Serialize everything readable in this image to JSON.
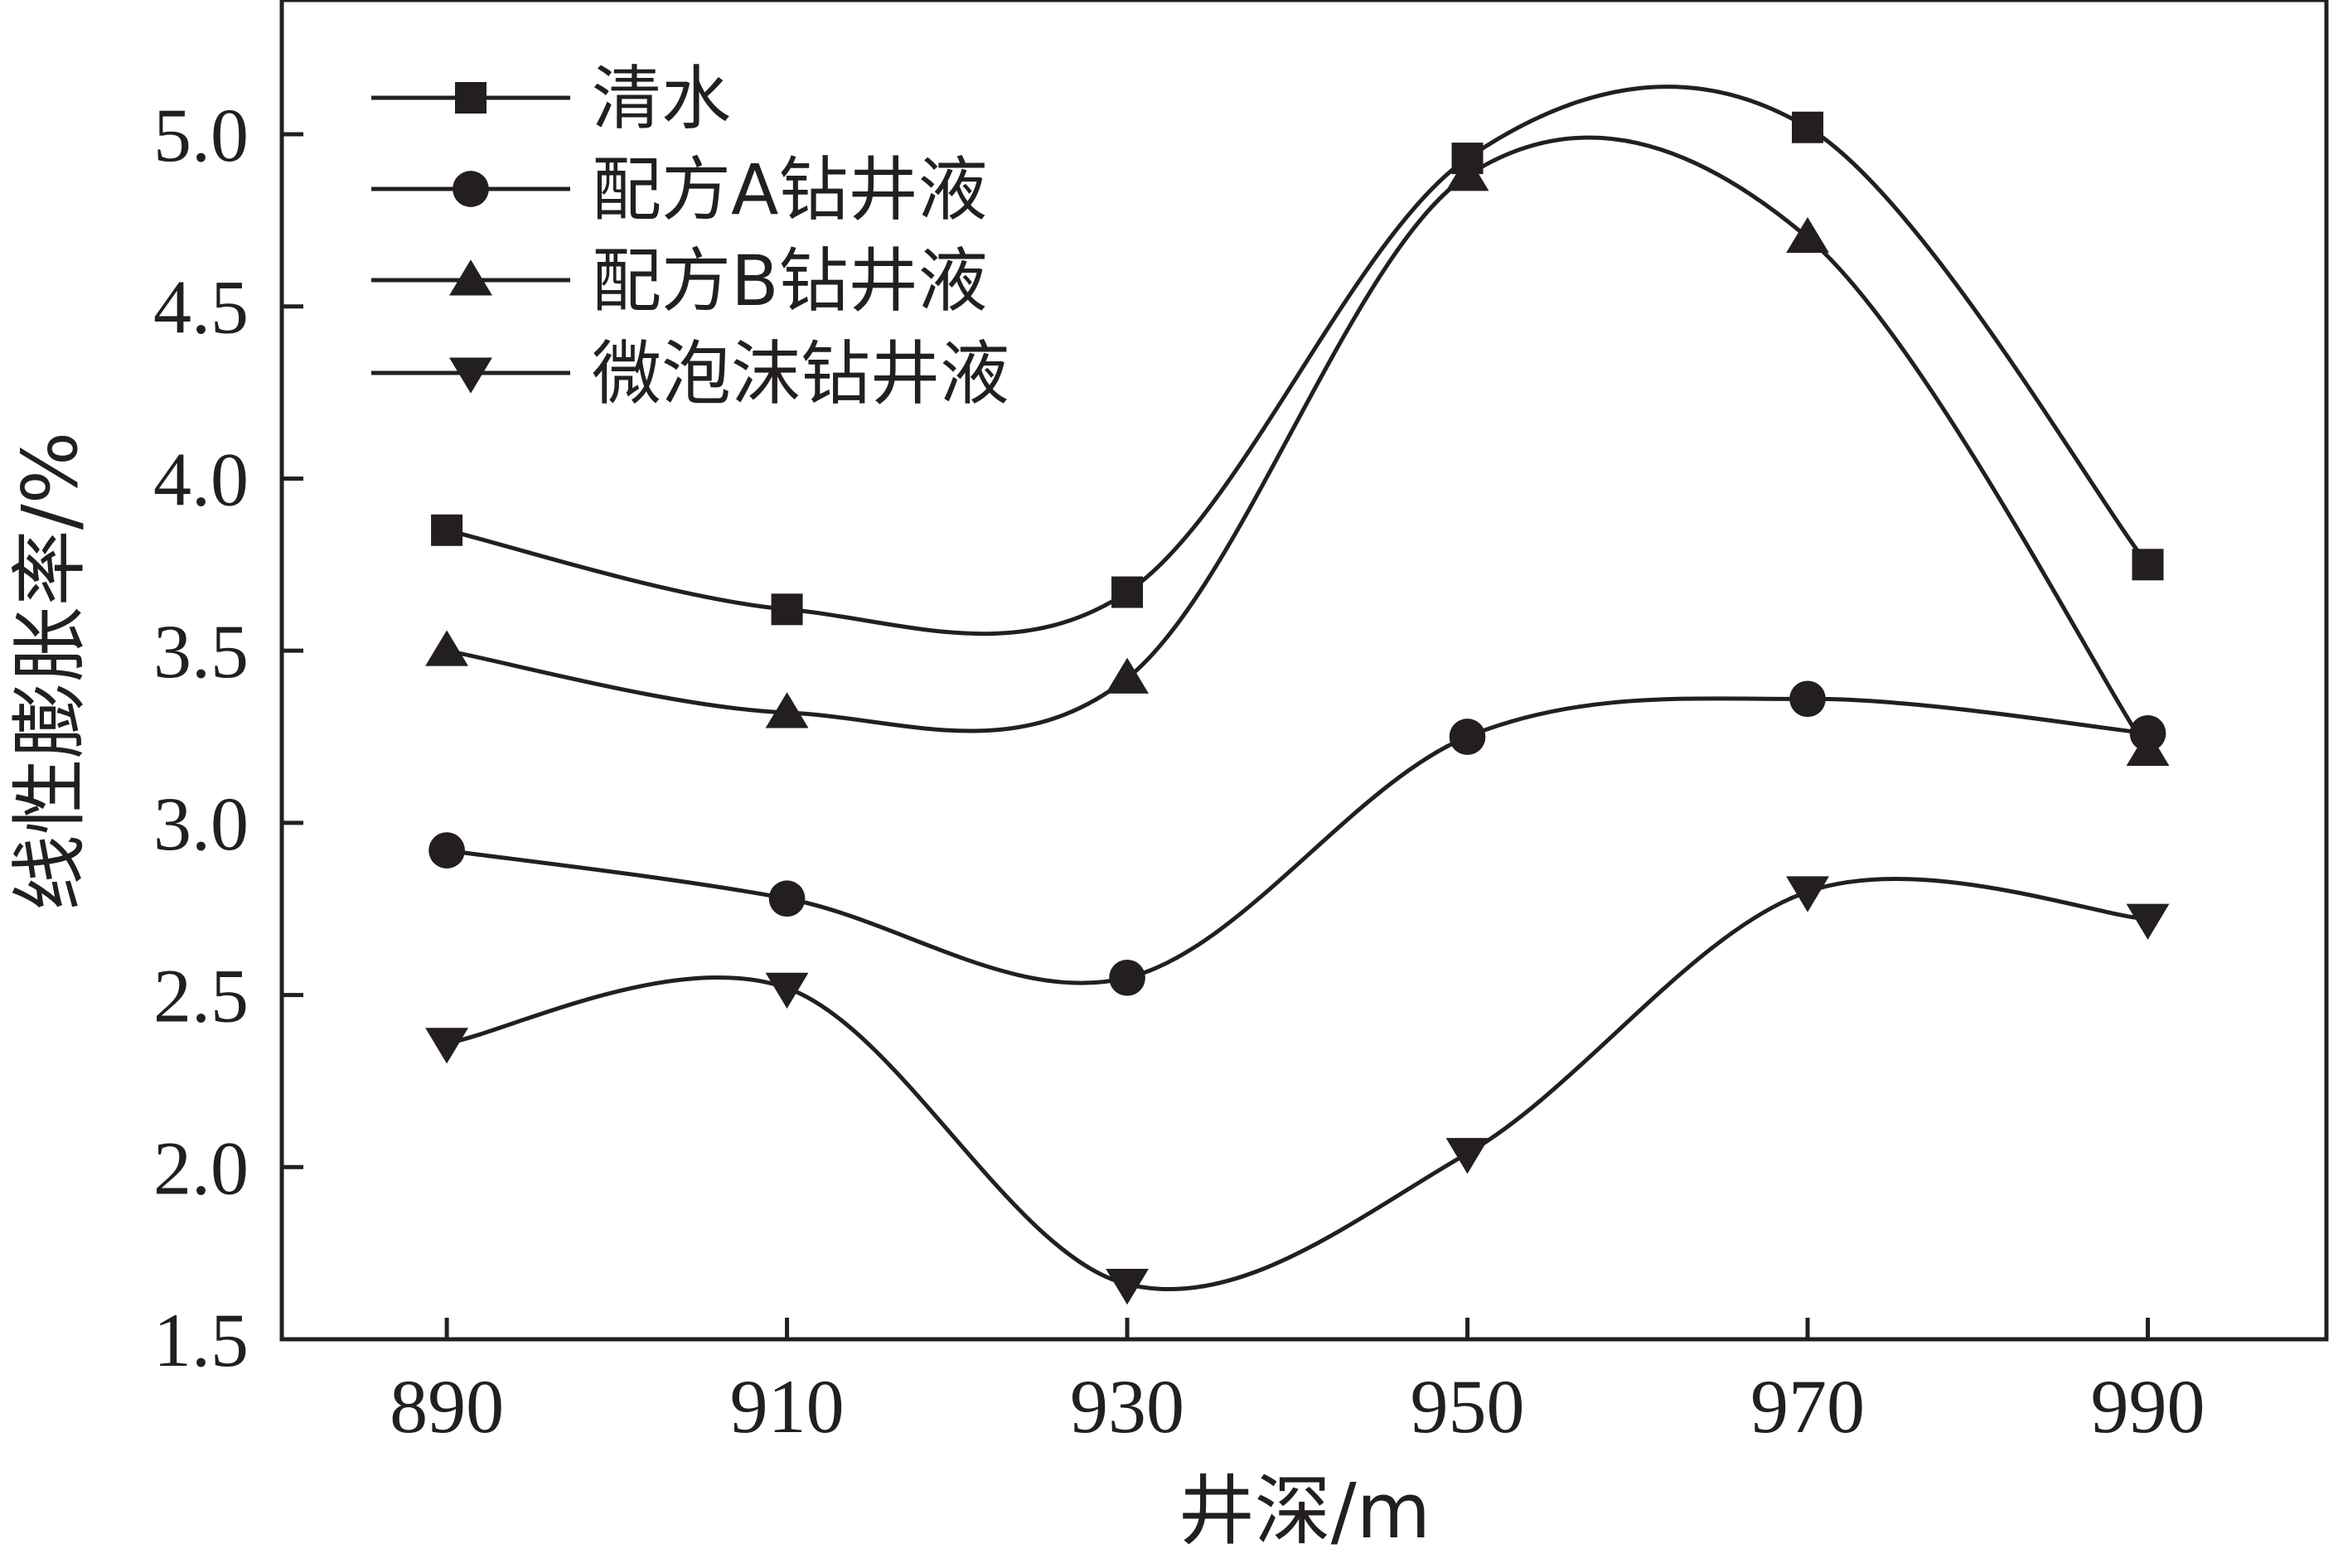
{
  "chart_data": {
    "type": "line",
    "xlabel": "井深/m",
    "ylabel": "线性膨胀率/%",
    "x": [
      890,
      910,
      930,
      950,
      970,
      990
    ],
    "x_ticks": [
      "890",
      "910",
      "930",
      "950",
      "970",
      "990"
    ],
    "y_ticks": [
      "1.5",
      "2.0",
      "2.5",
      "3.0",
      "3.5",
      "4.0",
      "4.5",
      "5.0"
    ],
    "xlim": [
      880.3,
      1000.5
    ],
    "ylim": [
      1.5,
      5.39
    ],
    "grid": false,
    "legend_position": "top-left",
    "smooth": true,
    "series": [
      {
        "name": "清水",
        "marker": "square",
        "values": [
          3.85,
          3.62,
          3.67,
          4.93,
          5.02,
          3.75
        ]
      },
      {
        "name": "配方A钻井液",
        "marker": "circle",
        "values": [
          2.92,
          2.78,
          2.55,
          3.25,
          3.36,
          3.26
        ]
      },
      {
        "name": "配方B钻井液",
        "marker": "triangle-up",
        "values": [
          3.5,
          3.32,
          3.42,
          4.88,
          4.7,
          3.21
        ]
      },
      {
        "name": "微泡沫钻井液",
        "marker": "triangle-down",
        "values": [
          2.36,
          2.52,
          1.66,
          2.04,
          2.8,
          2.72
        ]
      }
    ],
    "colors": {
      "line": "#231f20",
      "background": "#ffffff"
    }
  }
}
